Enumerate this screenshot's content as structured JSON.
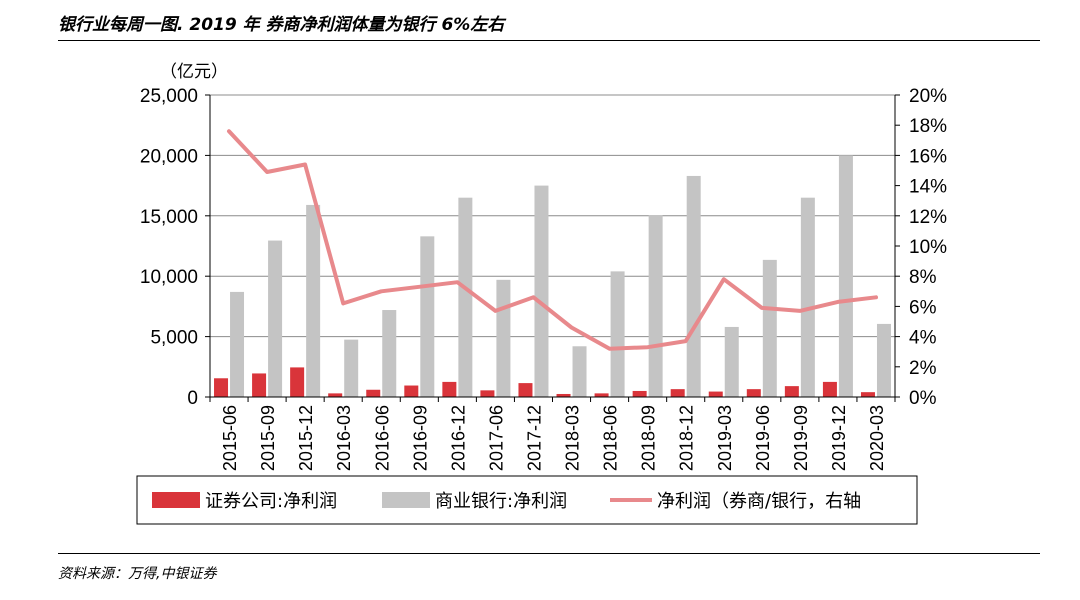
{
  "header": {
    "title": "银行业每周一图. 2019 年 券商净利润体量为银行 6%左右"
  },
  "footer": {
    "source": "资料来源：万得,中银证券"
  },
  "colors": {
    "securities": "#d9343a",
    "banks": "#c4c4c4",
    "ratio_line": "#e8898c"
  },
  "chart_data": {
    "type": "bar",
    "title": "银行业每周一图. 2019 年 券商净利润体量为银行 6%左右",
    "categories": [
      "2015-06",
      "2015-09",
      "2015-12",
      "2016-03",
      "2016-06",
      "2016-09",
      "2016-12",
      "2017-06",
      "2017-12",
      "2018-03",
      "2018-06",
      "2018-09",
      "2018-12",
      "2019-03",
      "2019-06",
      "2019-09",
      "2019-12",
      "2020-03"
    ],
    "y_left": {
      "unit_label": "（亿元）",
      "range": [
        0,
        25000
      ],
      "ticks": [
        "0",
        "5,000",
        "10,000",
        "15,000",
        "20,000",
        "25,000"
      ]
    },
    "y_right": {
      "range": [
        0,
        20
      ],
      "ticks": [
        "0%",
        "2%",
        "4%",
        "6%",
        "8%",
        "10%",
        "12%",
        "14%",
        "16%",
        "18%",
        "20%"
      ]
    },
    "grid": true,
    "legend_position": "bottom",
    "series": [
      {
        "name": "证券公司:净利润",
        "type": "bar",
        "axis": "left",
        "values": [
          1550,
          1950,
          2450,
          300,
          600,
          950,
          1250,
          550,
          1150,
          250,
          300,
          500,
          650,
          450,
          650,
          900,
          1250,
          400
        ]
      },
      {
        "name": "商业银行:净利润",
        "type": "bar",
        "axis": "left",
        "values": [
          8700,
          12950,
          15900,
          4750,
          7200,
          13300,
          16500,
          9700,
          17500,
          4200,
          10400,
          15050,
          18300,
          5800,
          11350,
          16500,
          20000,
          6050
        ]
      },
      {
        "name": "净利润（券商/银行，右轴",
        "type": "line",
        "axis": "right",
        "values": [
          17.6,
          14.9,
          15.4,
          6.2,
          7.0,
          7.3,
          7.6,
          5.7,
          6.6,
          4.6,
          3.2,
          3.3,
          3.7,
          7.8,
          5.9,
          5.7,
          6.3,
          6.6
        ]
      }
    ]
  }
}
